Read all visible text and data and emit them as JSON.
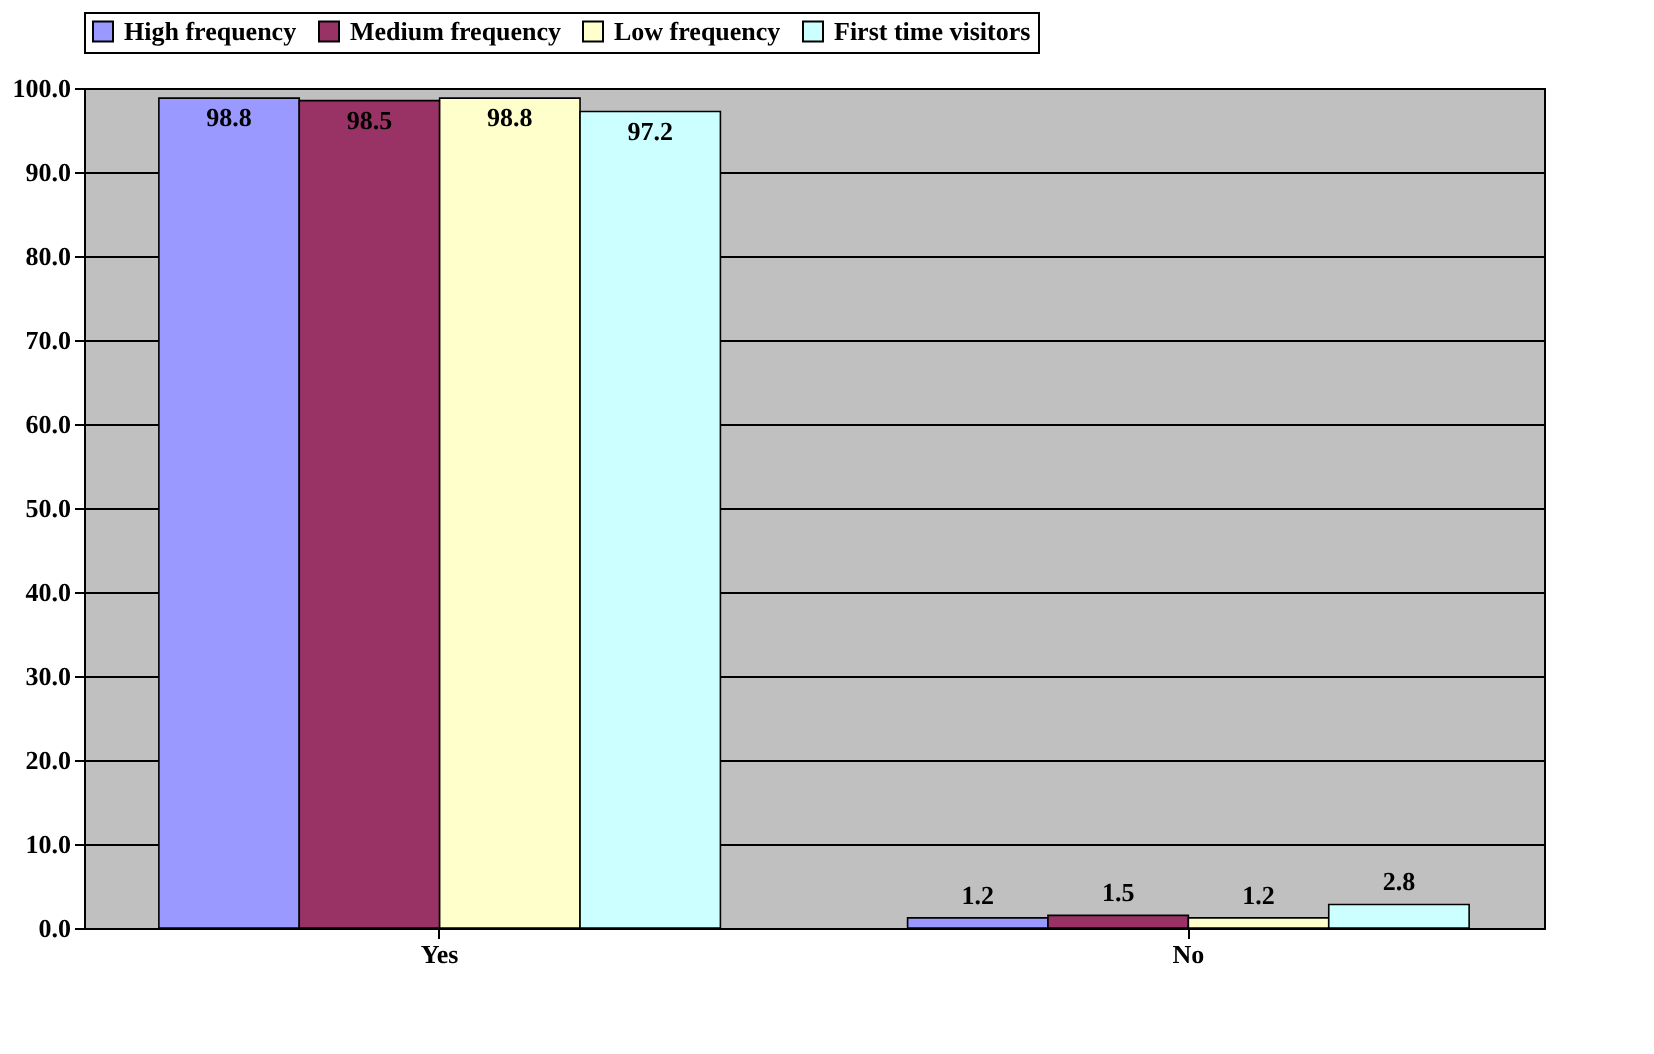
{
  "chart_data": {
    "type": "bar",
    "categories": [
      "Yes",
      "No"
    ],
    "series": [
      {
        "name": "High frequency",
        "color": "#9999ff",
        "values": [
          98.8,
          1.2
        ]
      },
      {
        "name": "Medium frequency",
        "color": "#993366",
        "values": [
          98.5,
          1.5
        ]
      },
      {
        "name": "Low frequency",
        "color": "#ffffcc",
        "values": [
          98.8,
          1.2
        ]
      },
      {
        "name": "First time visitors",
        "color": "#ccffff",
        "values": [
          97.2,
          2.8
        ]
      }
    ],
    "ylim": [
      0,
      100
    ],
    "yticks": [
      {
        "value": 0,
        "label": "0.0"
      },
      {
        "value": 10,
        "label": "10.0"
      },
      {
        "value": 20,
        "label": "20.0"
      },
      {
        "value": 30,
        "label": "30.0"
      },
      {
        "value": 40,
        "label": "40.0"
      },
      {
        "value": 50,
        "label": "50.0"
      },
      {
        "value": 60,
        "label": "60.0"
      },
      {
        "value": 70,
        "label": "70.0"
      },
      {
        "value": 80,
        "label": "80.0"
      },
      {
        "value": 90,
        "label": "90.0"
      },
      {
        "value": 100,
        "label": "100.0"
      }
    ],
    "grid": "y",
    "legend": "top",
    "data_labels": true
  }
}
